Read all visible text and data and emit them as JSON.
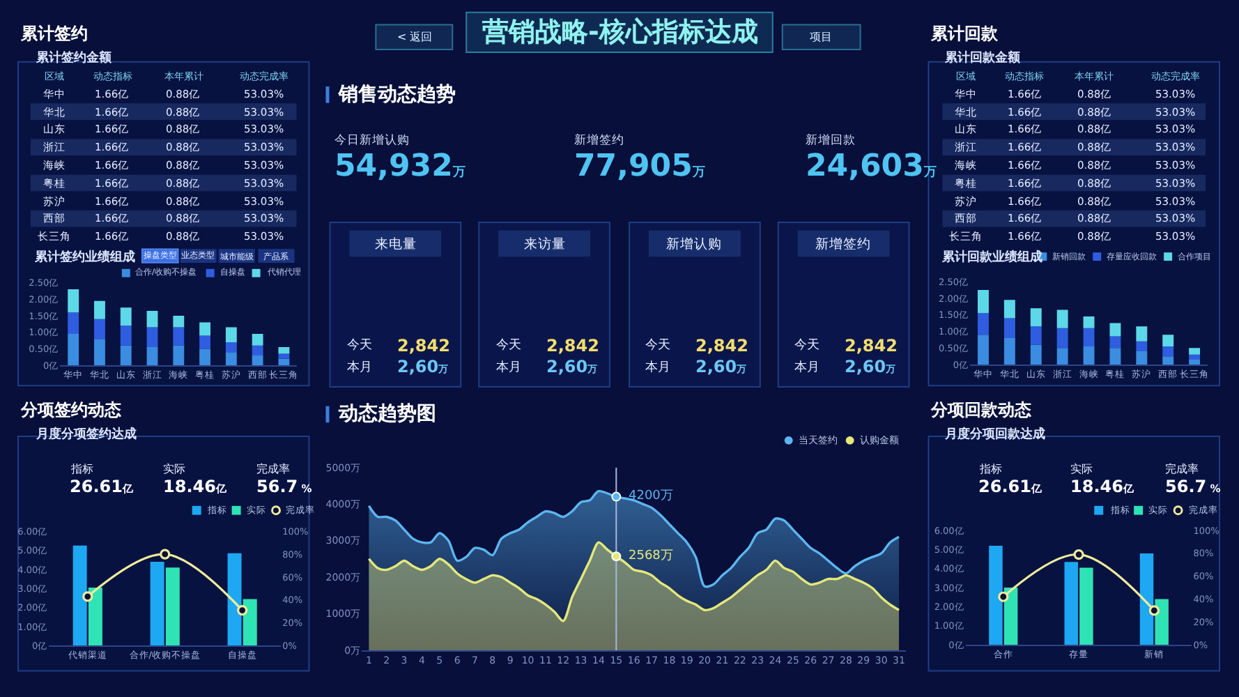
{
  "chart_data": [
    {
      "type": "other",
      "title": "营销战略-核心指标达成",
      "annotations": [
        "< 返回",
        "项目"
      ]
    },
    {
      "type": "other",
      "title": "累计签约",
      "subtitle": "累计签约金额",
      "ylabel": "区域",
      "categories": [
        "动态指标",
        "本年累计",
        "动态完成率"
      ],
      "y_categories": [
        "华中",
        "华北",
        "山东",
        "浙江",
        "海峡",
        "粤桂",
        "苏沪",
        "西部",
        "长三角"
      ],
      "cell_labels": [
        [
          "1.66亿",
          "0.88亿",
          "53.03%"
        ],
        [
          "1.66亿",
          "0.88亿",
          "53.03%"
        ],
        [
          "1.66亿",
          "0.88亿",
          "53.03%"
        ],
        [
          "1.66亿",
          "0.88亿",
          "53.03%"
        ],
        [
          "1.66亿",
          "0.88亿",
          "53.03%"
        ],
        [
          "1.66亿",
          "0.88亿",
          "53.03%"
        ],
        [
          "1.66亿",
          "0.88亿",
          "53.03%"
        ],
        [
          "1.66亿",
          "0.88亿",
          "53.03%"
        ],
        [
          "1.66亿",
          "0.88亿",
          "53.03%"
        ]
      ]
    },
    {
      "type": "other",
      "title": "销售动态趋势",
      "annotations": [
        "今日新增认购",
        "54,932万",
        "新增签约",
        "77,905万",
        "新增回款",
        "24,603万"
      ]
    },
    {
      "type": "other",
      "title": "累计回款",
      "subtitle": "累计回款金额",
      "ylabel": "区域",
      "categories": [
        "动态指标",
        "本年累计",
        "动态完成率"
      ],
      "y_categories": [
        "华中",
        "华北",
        "山东",
        "浙江",
        "海峡",
        "粤桂",
        "苏沪",
        "西部",
        "长三角"
      ],
      "cell_labels": [
        [
          "1.66亿",
          "0.88亿",
          "53.03%"
        ],
        [
          "1.66亿",
          "0.88亿",
          "53.03%"
        ],
        [
          "1.66亿",
          "0.88亿",
          "53.03%"
        ],
        [
          "1.66亿",
          "0.88亿",
          "53.03%"
        ],
        [
          "1.66亿",
          "0.88亿",
          "53.03%"
        ],
        [
          "1.66亿",
          "0.88亿",
          "53.03%"
        ],
        [
          "1.66亿",
          "0.88亿",
          "53.03%"
        ],
        [
          "1.66亿",
          "0.88亿",
          "53.03%"
        ],
        [
          "1.66亿",
          "0.88亿",
          "53.03%"
        ]
      ]
    },
    {
      "type": "bar",
      "title": "累计签约业绩组成",
      "annotations": [
        "操盘类型",
        "业态类型",
        "城市能级",
        "产品系"
      ],
      "stacked": true,
      "categories": [
        "华中",
        "华北",
        "山东",
        "浙江",
        "海峡",
        "粤桂",
        "苏沪",
        "西部",
        "长三角"
      ],
      "series": [
        {
          "name": "合作/收购不操盘",
          "color": "#3a8de0",
          "values": [
            0.95,
            0.8,
            0.6,
            0.55,
            0.6,
            0.5,
            0.4,
            0.3,
            0.2
          ]
        },
        {
          "name": "自操盘",
          "color": "#2f5de0",
          "values": [
            0.65,
            0.6,
            0.6,
            0.6,
            0.55,
            0.4,
            0.3,
            0.3,
            0.15
          ]
        },
        {
          "name": "代销代理",
          "color": "#5cd8e8",
          "values": [
            0.7,
            0.55,
            0.55,
            0.5,
            0.35,
            0.4,
            0.45,
            0.35,
            0.2
          ]
        }
      ],
      "ylim": [
        0,
        2.5
      ],
      "yticks": [
        {
          "value": 0,
          "label": "0亿"
        },
        {
          "value": 0.5,
          "label": "0.50亿"
        },
        {
          "value": 1,
          "label": "1.00亿"
        },
        {
          "value": 1.5,
          "label": "1.50亿"
        },
        {
          "value": 2,
          "label": "2.00亿"
        },
        {
          "value": 2.5,
          "label": "2.50亿"
        }
      ],
      "legend": "top right"
    },
    {
      "type": "other",
      "annotations": [
        "来电量",
        "今天",
        "2,842",
        "本月",
        "2,60万",
        "来访量",
        "今天",
        "2,842",
        "本月",
        "2,60万",
        "新增认购",
        "今天",
        "2,842",
        "本月",
        "2,60万",
        "新增签约",
        "今天",
        "2,842",
        "本月",
        "2,60万"
      ]
    },
    {
      "type": "bar",
      "title": "累计回款业绩组成",
      "stacked": true,
      "categories": [
        "华中",
        "华北",
        "山东",
        "浙江",
        "海峡",
        "粤桂",
        "苏沪",
        "西部",
        "长三角"
      ],
      "series": [
        {
          "name": "新销回款",
          "color": "#3a8de0",
          "values": [
            0.9,
            0.8,
            0.6,
            0.5,
            0.55,
            0.5,
            0.4,
            0.25,
            0.15
          ]
        },
        {
          "name": "存量应收回款",
          "color": "#2f5de0",
          "values": [
            0.65,
            0.6,
            0.55,
            0.6,
            0.55,
            0.35,
            0.3,
            0.3,
            0.15
          ]
        },
        {
          "name": "合作项目",
          "color": "#5cd8e8",
          "values": [
            0.7,
            0.55,
            0.55,
            0.55,
            0.35,
            0.4,
            0.45,
            0.35,
            0.2
          ]
        }
      ],
      "ylim": [
        0,
        2.5
      ],
      "yticks": [
        {
          "value": 0,
          "label": "0亿"
        },
        {
          "value": 0.5,
          "label": "0.50亿"
        },
        {
          "value": 1,
          "label": "1.00亿"
        },
        {
          "value": 1.5,
          "label": "1.50亿"
        },
        {
          "value": 2,
          "label": "2.00亿"
        },
        {
          "value": 2.5,
          "label": "2.50亿"
        }
      ],
      "legend": "top right"
    },
    {
      "type": "bar",
      "title": "分项签约动态",
      "subtitle": "月度分项签约达成",
      "annotations": [
        "指标",
        "26.61亿",
        "实际",
        "18.46亿",
        "完成率",
        "56.7 %"
      ],
      "categories": [
        "代销渠道",
        "合作/收购不操盘",
        "自操盘"
      ],
      "series": [
        {
          "name": "指标",
          "color": "#1ea7f2",
          "values": [
            5.25,
            4.4,
            4.85
          ]
        },
        {
          "name": "实际",
          "color": "#2fe3b5",
          "values": [
            3.05,
            4.1,
            2.45
          ]
        },
        {
          "name": "完成率",
          "type": "line",
          "axis": "y2",
          "color": "#f0eb9a",
          "values": [
            43,
            80,
            31
          ]
        }
      ],
      "ylim": [
        0,
        6
      ],
      "yticks": [
        {
          "value": 0,
          "label": "0亿"
        },
        {
          "value": 1,
          "label": "1.00亿"
        },
        {
          "value": 2,
          "label": "2.00亿"
        },
        {
          "value": 3,
          "label": "3.00亿"
        },
        {
          "value": 4,
          "label": "4.00亿"
        },
        {
          "value": 5,
          "label": "5.00亿"
        },
        {
          "value": 6,
          "label": "6.00亿"
        }
      ],
      "y2lim": [
        0,
        100
      ],
      "y2ticks": [
        {
          "value": 0,
          "label": "0%"
        },
        {
          "value": 20,
          "label": "20%"
        },
        {
          "value": 40,
          "label": "40%"
        },
        {
          "value": 60,
          "label": "60%"
        },
        {
          "value": 80,
          "label": "80%"
        },
        {
          "value": 100,
          "label": "100%"
        }
      ],
      "legend": "top right",
      "marker": "circle"
    },
    {
      "type": "area",
      "title": "动态趋势图",
      "series": [
        {
          "name": "当天签约",
          "color": "#5cb6f0",
          "x": [
            1,
            1.5,
            2,
            2.5,
            3,
            3.5,
            4,
            4.5,
            5,
            5.5,
            6,
            6.5,
            7,
            7.5,
            8,
            8.5,
            9,
            9.5,
            10,
            10.5,
            11,
            11.5,
            12,
            12.5,
            13,
            13.5,
            14,
            15,
            16,
            16.5,
            17,
            17.5,
            18,
            18.5,
            19,
            19.5,
            20,
            20.5,
            21,
            21.5,
            22,
            22.5,
            23,
            23.5,
            24,
            24.5,
            25,
            25.5,
            26,
            26.5,
            27,
            27.5,
            28,
            28.5,
            29,
            29.5,
            30,
            30.5,
            31
          ],
          "values": [
            3950,
            3650,
            3650,
            3550,
            3300,
            3050,
            2950,
            2950,
            3200,
            3000,
            2450,
            2550,
            2800,
            2750,
            2600,
            3050,
            3200,
            3300,
            3500,
            3650,
            3800,
            3750,
            3650,
            3800,
            4050,
            4100,
            4350,
            4200,
            4100,
            4000,
            3900,
            3700,
            3450,
            3200,
            2950,
            2550,
            1750,
            1800,
            2050,
            2250,
            2550,
            2800,
            3200,
            3300,
            3600,
            3550,
            3300,
            3050,
            2800,
            2650,
            2450,
            2250,
            2100,
            2300,
            2450,
            2550,
            2650,
            2950,
            3100
          ]
        },
        {
          "name": "认购金额",
          "color": "#e4e87a",
          "x": [
            1,
            1.5,
            2,
            2.5,
            3,
            3.5,
            4,
            4.5,
            5,
            5.5,
            6,
            6.5,
            7,
            7.5,
            8,
            8.5,
            9,
            9.5,
            10,
            10.5,
            11,
            11.5,
            12,
            12.5,
            13,
            13.5,
            14,
            14.5,
            15,
            15.5,
            16,
            16.5,
            17,
            17.5,
            18,
            18.5,
            19,
            19.5,
            20,
            20.5,
            21,
            21.5,
            22,
            22.5,
            23,
            23.5,
            24,
            24.5,
            25,
            25.5,
            26,
            26.5,
            27,
            27.5,
            28,
            28.5,
            29,
            29.5,
            30,
            30.5,
            31
          ],
          "values": [
            2500,
            2250,
            2200,
            2300,
            2450,
            2300,
            2200,
            2300,
            2500,
            2350,
            2100,
            1950,
            1850,
            1950,
            2050,
            2000,
            1850,
            1700,
            1500,
            1400,
            1250,
            1050,
            800,
            1450,
            1950,
            2450,
            2950,
            2750,
            2568,
            2400,
            2200,
            2150,
            2050,
            1850,
            1700,
            1500,
            1350,
            1250,
            1100,
            1150,
            1300,
            1450,
            1650,
            1850,
            2050,
            2200,
            2450,
            2250,
            2150,
            1950,
            1800,
            1850,
            1950,
            1950,
            2050,
            1950,
            1850,
            1700,
            1450,
            1250,
            1100
          ]
        }
      ],
      "xlim": [
        0.6,
        31.4
      ],
      "xticks": [
        1,
        2,
        3,
        4,
        5,
        6,
        7,
        8,
        9,
        10,
        11,
        12,
        13,
        14,
        15,
        16,
        17,
        18,
        19,
        20,
        21,
        22,
        23,
        24,
        25,
        26,
        27,
        28,
        29,
        30,
        31
      ],
      "ylim": [
        0,
        5000
      ],
      "yticks": [
        {
          "value": 0,
          "label": "0万"
        },
        {
          "value": 1000,
          "label": "1000万"
        },
        {
          "value": 2000,
          "label": "2000万"
        },
        {
          "value": 3000,
          "label": "3000万"
        },
        {
          "value": 4000,
          "label": "4000万"
        },
        {
          "value": 5000,
          "label": "5000万"
        }
      ],
      "legend": "top right",
      "annotations": [
        {
          "text": "4200万",
          "x": 15,
          "y": 4200
        },
        {
          "text": "2568万",
          "x": 15,
          "y": 2568
        }
      ],
      "ref_lines": [
        {
          "axis": "x",
          "value": 15
        }
      ]
    },
    {
      "type": "bar",
      "title": "分项回款动态",
      "subtitle": "月度分项回款达成",
      "annotations": [
        "指标",
        "26.61亿",
        "实际",
        "18.46亿",
        "完成率",
        "56.7 %"
      ],
      "categories": [
        "合作",
        "存量",
        "新销"
      ],
      "series": [
        {
          "name": "指标",
          "color": "#1ea7f2",
          "values": [
            5.2,
            4.35,
            4.8
          ]
        },
        {
          "name": "实际",
          "color": "#2fe3b5",
          "values": [
            3.0,
            4.05,
            2.4
          ]
        },
        {
          "name": "完成率",
          "type": "line",
          "axis": "y2",
          "color": "#f0eb9a",
          "values": [
            42,
            79,
            30
          ]
        }
      ],
      "ylim": [
        0,
        6
      ],
      "yticks": [
        {
          "value": 0,
          "label": "0亿"
        },
        {
          "value": 1,
          "label": "1.00亿"
        },
        {
          "value": 2,
          "label": "2.00亿"
        },
        {
          "value": 3,
          "label": "3.00亿"
        },
        {
          "value": 4,
          "label": "4.00亿"
        },
        {
          "value": 5,
          "label": "5.00亿"
        },
        {
          "value": 6,
          "label": "6.00亿"
        }
      ],
      "y2lim": [
        0,
        100
      ],
      "y2ticks": [
        {
          "value": 0,
          "label": "0%"
        },
        {
          "value": 20,
          "label": "20%"
        },
        {
          "value": 40,
          "label": "40%"
        },
        {
          "value": 60,
          "label": "60%"
        },
        {
          "value": 80,
          "label": "80%"
        },
        {
          "value": 100,
          "label": "100%"
        }
      ],
      "legend": "top right",
      "marker": "circle"
    }
  ]
}
